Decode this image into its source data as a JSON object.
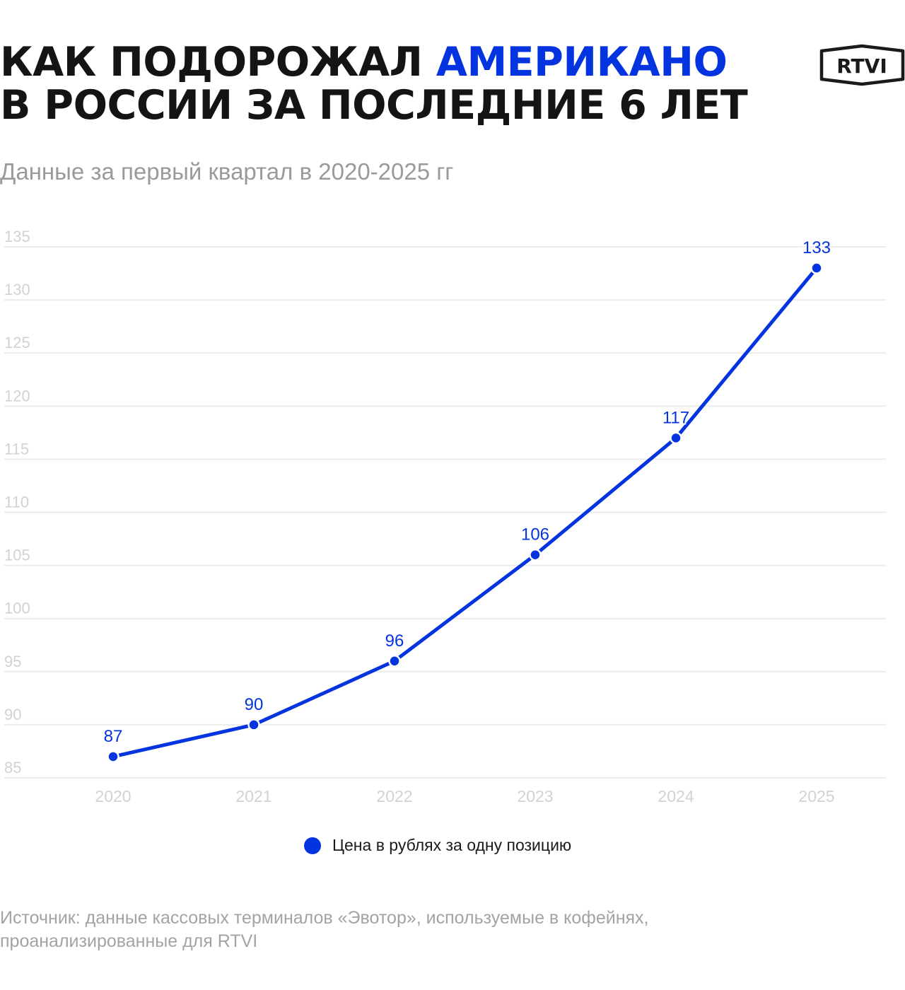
{
  "header": {
    "title_part1": "КАК ПОДОРОЖАЛ ",
    "title_accent": "АМЕРИКАНО",
    "title_part2": "В РОССИИ ЗА ПОСЛЕДНИЕ 6 ЛЕТ",
    "subtitle": "Данные за первый квартал в 2020-2025 гг"
  },
  "logo": {
    "text": "RTVI"
  },
  "colors": {
    "accent": "#0433e0",
    "title": "#141414",
    "muted": "#9a9a9a",
    "grid": "#ececec",
    "tick": "#d2d2d2"
  },
  "chart_data": {
    "type": "line",
    "categories": [
      "2020",
      "2021",
      "2022",
      "2023",
      "2024",
      "2025"
    ],
    "series": [
      {
        "name": "Цена в рублях за одну позицию",
        "values": [
          87,
          90,
          96,
          106,
          117,
          133
        ]
      }
    ],
    "ylim": [
      85,
      135
    ],
    "yticks": [
      135,
      130,
      125,
      120,
      115,
      110,
      105,
      100,
      95,
      90,
      85
    ],
    "grid": true,
    "legend_position": "bottom-center"
  },
  "legend": {
    "label": "Цена в рублях за одну позицию"
  },
  "footer": {
    "source_line1": "Источник: данные кассовых терминалов «Эвотор», используемые в кофейнях,",
    "source_line2": "проанализированные для RTVI"
  }
}
